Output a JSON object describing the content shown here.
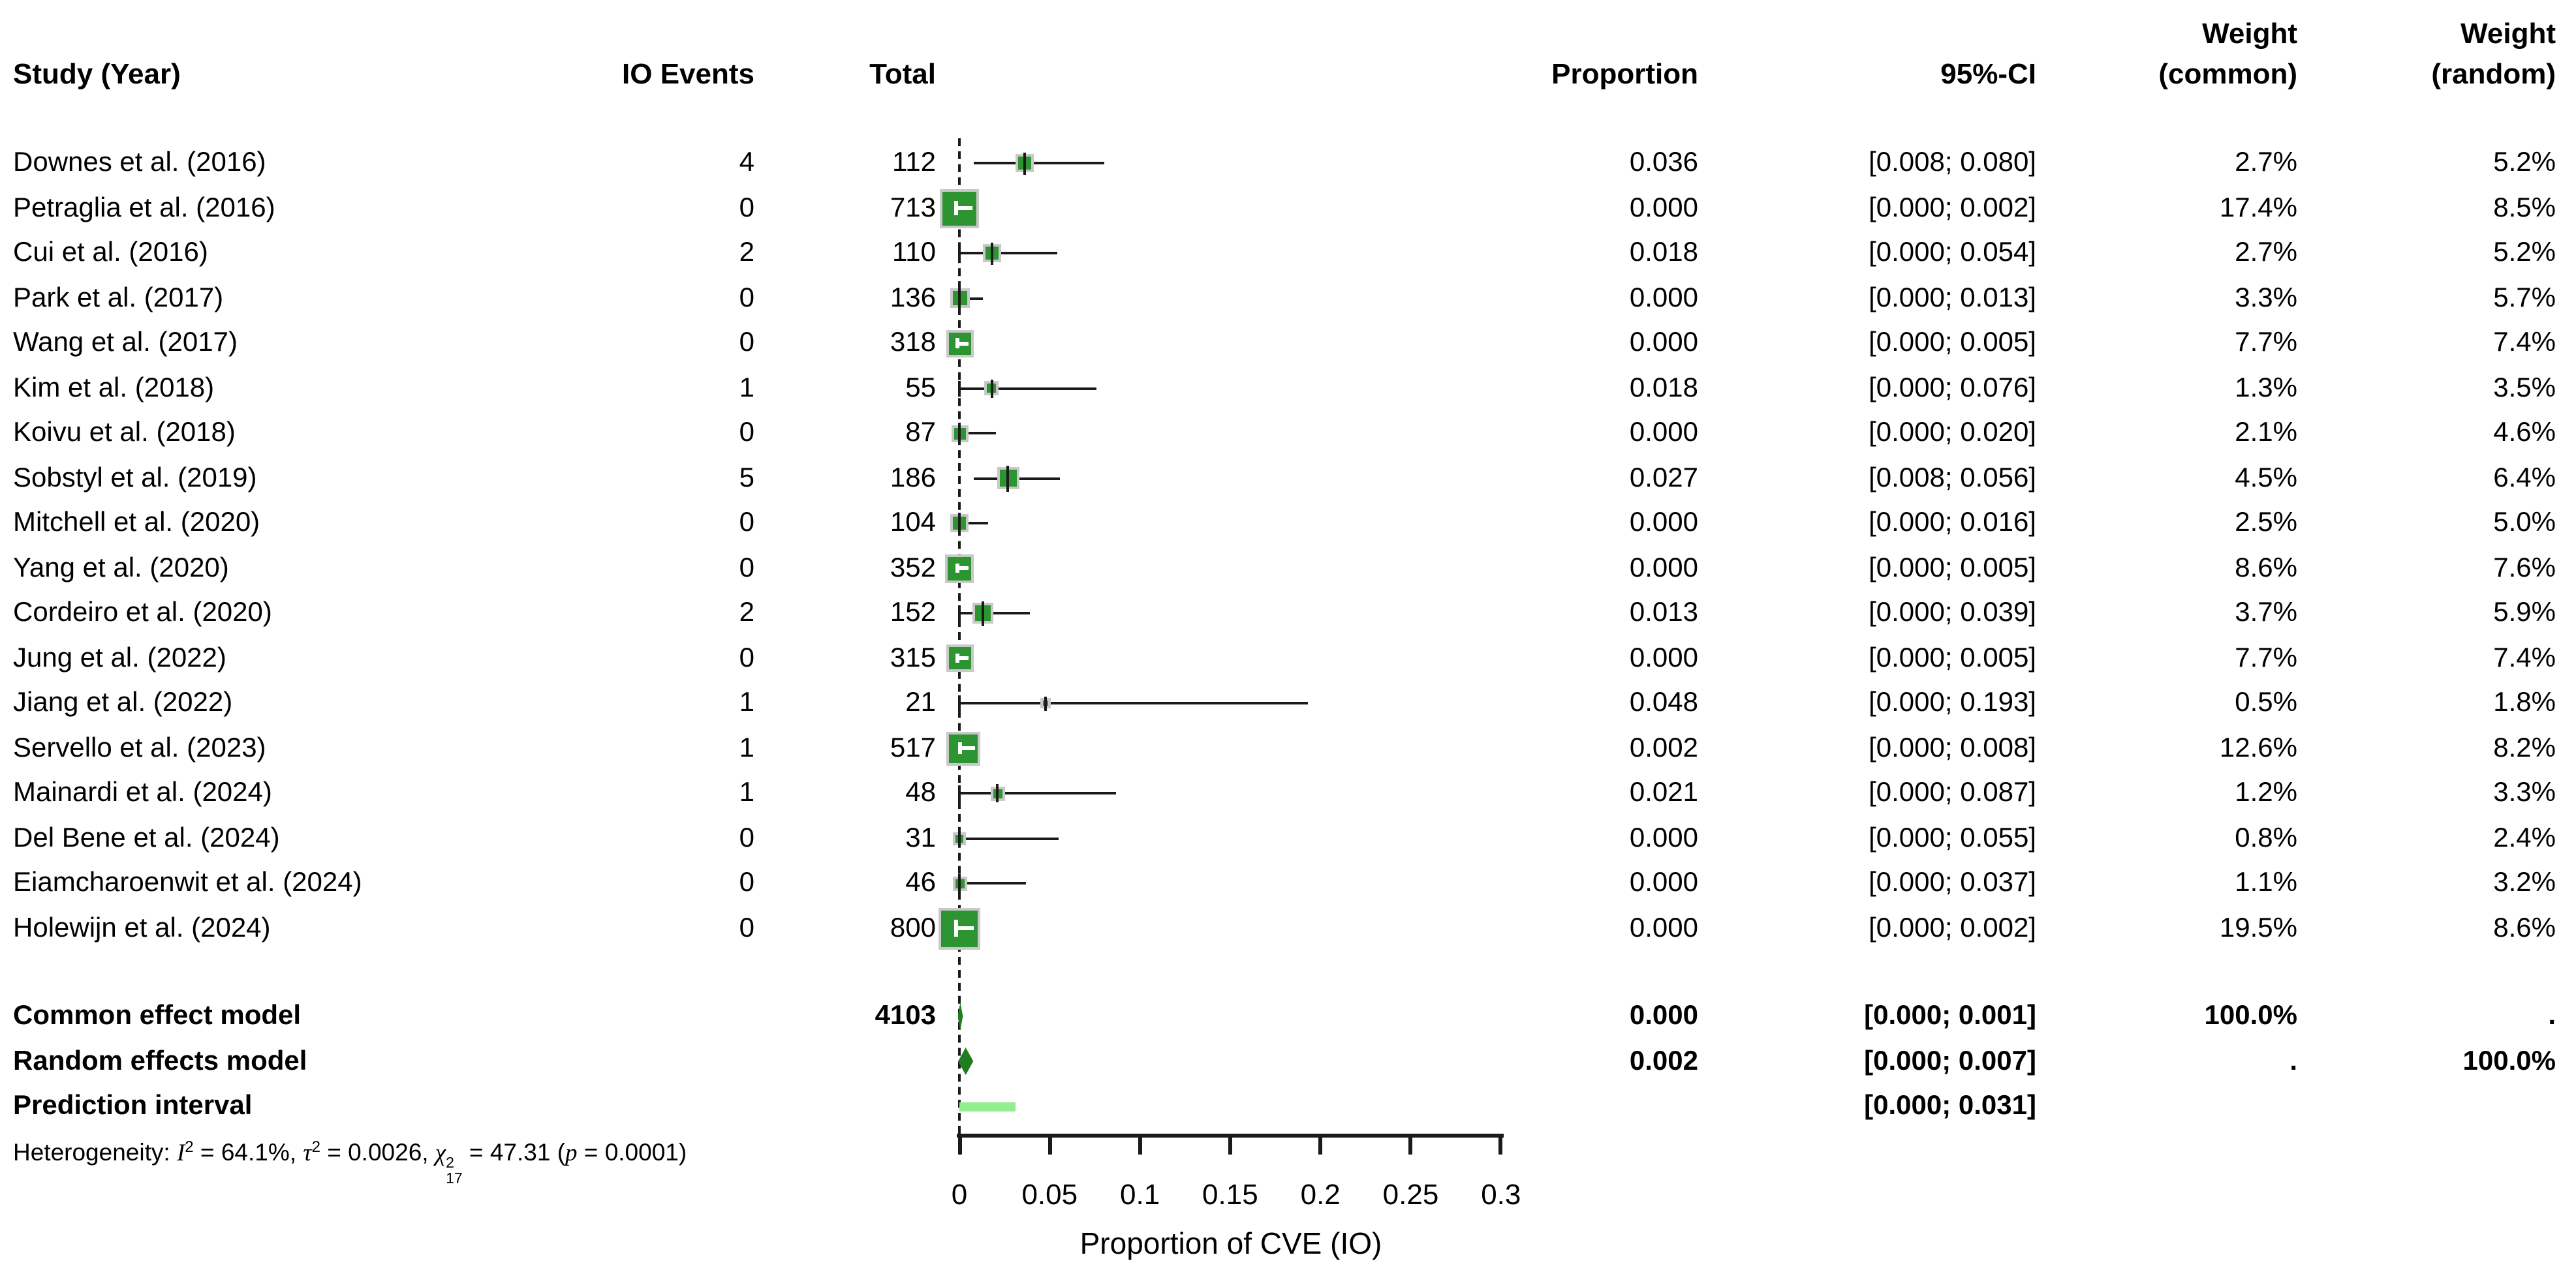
{
  "columns": {
    "study": "Study (Year)",
    "io_events": "IO Events",
    "total": "Total",
    "proportion": "Proportion",
    "ci": "95%-CI",
    "weight": "Weight",
    "weight_common_sub": "(common)",
    "weight_random_sub": "(random)"
  },
  "chart_data": {
    "type": "scatter",
    "variant": "forest-plot",
    "xlabel": "Proportion of CVE (IO)",
    "xlim": [
      0,
      0.3
    ],
    "x_ticks": [
      0,
      0.05,
      0.1,
      0.15,
      0.2,
      0.25,
      0.3
    ],
    "x_tick_labels": [
      "0",
      "0.05",
      "0.1",
      "0.15",
      "0.2",
      "0.25",
      "0.3"
    ],
    "reference_line_x": 0,
    "colors": {
      "square": "#2C9430",
      "square_border": "#C9C9C9",
      "diamond": "#1F7C1F",
      "prediction_bar": "#90EE90",
      "line": "#1A1A1A"
    },
    "studies": [
      {
        "name": "Downes et al. (2016)",
        "events": "4",
        "total": "112",
        "proportion": 0.036,
        "ci_low": 0.008,
        "ci_high": 0.08,
        "prop_label": "0.036",
        "ci_label": "[0.008; 0.080]",
        "weight_common": 2.7,
        "wc_label": "2.7%",
        "wr_label": "5.2%"
      },
      {
        "name": "Petraglia et al. (2016)",
        "events": "0",
        "total": "713",
        "proportion": 0.0,
        "ci_low": 0.0,
        "ci_high": 0.002,
        "prop_label": "0.000",
        "ci_label": "[0.000; 0.002]",
        "weight_common": 17.4,
        "wc_label": "17.4%",
        "wr_label": "8.5%"
      },
      {
        "name": "Cui et al. (2016)",
        "events": "2",
        "total": "110",
        "proportion": 0.018,
        "ci_low": 0.0,
        "ci_high": 0.054,
        "prop_label": "0.018",
        "ci_label": "[0.000; 0.054]",
        "weight_common": 2.7,
        "wc_label": "2.7%",
        "wr_label": "5.2%"
      },
      {
        "name": "Park et al. (2017)",
        "events": "0",
        "total": "136",
        "proportion": 0.0,
        "ci_low": 0.0,
        "ci_high": 0.013,
        "prop_label": "0.000",
        "ci_label": "[0.000; 0.013]",
        "weight_common": 3.3,
        "wc_label": "3.3%",
        "wr_label": "5.7%"
      },
      {
        "name": "Wang et al. (2017)",
        "events": "0",
        "total": "318",
        "proportion": 0.0,
        "ci_low": 0.0,
        "ci_high": 0.005,
        "prop_label": "0.000",
        "ci_label": "[0.000; 0.005]",
        "weight_common": 7.7,
        "wc_label": "7.7%",
        "wr_label": "7.4%"
      },
      {
        "name": "Kim et al. (2018)",
        "events": "1",
        "total": "55",
        "proportion": 0.018,
        "ci_low": 0.0,
        "ci_high": 0.076,
        "prop_label": "0.018",
        "ci_label": "[0.000; 0.076]",
        "weight_common": 1.3,
        "wc_label": "1.3%",
        "wr_label": "3.5%"
      },
      {
        "name": "Koivu et al. (2018)",
        "events": "0",
        "total": "87",
        "proportion": 0.0,
        "ci_low": 0.0,
        "ci_high": 0.02,
        "prop_label": "0.000",
        "ci_label": "[0.000; 0.020]",
        "weight_common": 2.1,
        "wc_label": "2.1%",
        "wr_label": "4.6%"
      },
      {
        "name": "Sobstyl et al. (2019)",
        "events": "5",
        "total": "186",
        "proportion": 0.027,
        "ci_low": 0.008,
        "ci_high": 0.056,
        "prop_label": "0.027",
        "ci_label": "[0.008; 0.056]",
        "weight_common": 4.5,
        "wc_label": "4.5%",
        "wr_label": "6.4%"
      },
      {
        "name": "Mitchell et al. (2020)",
        "events": "0",
        "total": "104",
        "proportion": 0.0,
        "ci_low": 0.0,
        "ci_high": 0.016,
        "prop_label": "0.000",
        "ci_label": "[0.000; 0.016]",
        "weight_common": 2.5,
        "wc_label": "2.5%",
        "wr_label": "5.0%"
      },
      {
        "name": "Yang et al. (2020)",
        "events": "0",
        "total": "352",
        "proportion": 0.0,
        "ci_low": 0.0,
        "ci_high": 0.005,
        "prop_label": "0.000",
        "ci_label": "[0.000; 0.005]",
        "weight_common": 8.6,
        "wc_label": "8.6%",
        "wr_label": "7.6%"
      },
      {
        "name": "Cordeiro et al. (2020)",
        "events": "2",
        "total": "152",
        "proportion": 0.013,
        "ci_low": 0.0,
        "ci_high": 0.039,
        "prop_label": "0.013",
        "ci_label": "[0.000; 0.039]",
        "weight_common": 3.7,
        "wc_label": "3.7%",
        "wr_label": "5.9%"
      },
      {
        "name": "Jung et al. (2022)",
        "events": "0",
        "total": "315",
        "proportion": 0.0,
        "ci_low": 0.0,
        "ci_high": 0.005,
        "prop_label": "0.000",
        "ci_label": "[0.000; 0.005]",
        "weight_common": 7.7,
        "wc_label": "7.7%",
        "wr_label": "7.4%"
      },
      {
        "name": "Jiang et al. (2022)",
        "events": "1",
        "total": "21",
        "proportion": 0.048,
        "ci_low": 0.0,
        "ci_high": 0.193,
        "prop_label": "0.048",
        "ci_label": "[0.000; 0.193]",
        "weight_common": 0.5,
        "wc_label": "0.5%",
        "wr_label": "1.8%"
      },
      {
        "name": "Servello et al. (2023)",
        "events": "1",
        "total": "517",
        "proportion": 0.002,
        "ci_low": 0.0,
        "ci_high": 0.008,
        "prop_label": "0.002",
        "ci_label": "[0.000; 0.008]",
        "weight_common": 12.6,
        "wc_label": "12.6%",
        "wr_label": "8.2%"
      },
      {
        "name": "Mainardi et al. (2024)",
        "events": "1",
        "total": "48",
        "proportion": 0.021,
        "ci_low": 0.0,
        "ci_high": 0.087,
        "prop_label": "0.021",
        "ci_label": "[0.000; 0.087]",
        "weight_common": 1.2,
        "wc_label": "1.2%",
        "wr_label": "3.3%"
      },
      {
        "name": "Del Bene et al. (2024)",
        "events": "0",
        "total": "31",
        "proportion": 0.0,
        "ci_low": 0.0,
        "ci_high": 0.055,
        "prop_label": "0.000",
        "ci_label": "[0.000; 0.055]",
        "weight_common": 0.8,
        "wc_label": "0.8%",
        "wr_label": "2.4%"
      },
      {
        "name": "Eiamcharoenwit et al. (2024)",
        "events": "0",
        "total": "46",
        "proportion": 0.0,
        "ci_low": 0.0,
        "ci_high": 0.037,
        "prop_label": "0.000",
        "ci_label": "[0.000; 0.037]",
        "weight_common": 1.1,
        "wc_label": "1.1%",
        "wr_label": "3.2%"
      },
      {
        "name": "Holewijn et al. (2024)",
        "events": "0",
        "total": "800",
        "proportion": 0.0,
        "ci_low": 0.0,
        "ci_high": 0.002,
        "prop_label": "0.000",
        "ci_label": "[0.000; 0.002]",
        "weight_common": 19.5,
        "wc_label": "19.5%",
        "wr_label": "8.6%"
      }
    ],
    "summaries": [
      {
        "label": "Common effect model",
        "total": "4103",
        "proportion": 0.0,
        "ci_low": 0.0,
        "ci_high": 0.001,
        "prop_label": "0.000",
        "ci_label": "[0.000; 0.001]",
        "wc_label": "100.0%",
        "wr_label": ".",
        "marker": "diamond"
      },
      {
        "label": "Random effects model",
        "total": "",
        "proportion": 0.002,
        "ci_low": 0.0,
        "ci_high": 0.007,
        "prop_label": "0.002",
        "ci_label": "[0.000; 0.007]",
        "wc_label": ".",
        "wr_label": "100.0%",
        "marker": "diamond"
      },
      {
        "label": "Prediction interval",
        "total": "",
        "prop_label": "",
        "ci_low": 0.0,
        "ci_high": 0.031,
        "ci_label": "[0.000; 0.031]",
        "wc_label": "",
        "wr_label": "",
        "marker": "bar"
      }
    ],
    "heterogeneity": {
      "segments": [
        {
          "t": "Heterogeneity: "
        },
        {
          "t": "I",
          "i": true
        },
        {
          "t": "2",
          "sup": true
        },
        {
          "t": " = 64.1%, "
        },
        {
          "t": "τ",
          "i": true
        },
        {
          "t": "2",
          "sup": true
        },
        {
          "t": " = 0.0026, "
        },
        {
          "t": "χ",
          "i": true
        },
        {
          "stack": {
            "sup": "2",
            "sub": "17"
          }
        },
        {
          "t": " = 47.31 ("
        },
        {
          "t": "p",
          "i": true
        },
        {
          "t": " = 0.0001)"
        }
      ],
      "plain_text": "Heterogeneity: I² = 64.1%, τ² = 0.0026, χ²₁₇ = 47.31 (p = 0.0001)"
    }
  }
}
